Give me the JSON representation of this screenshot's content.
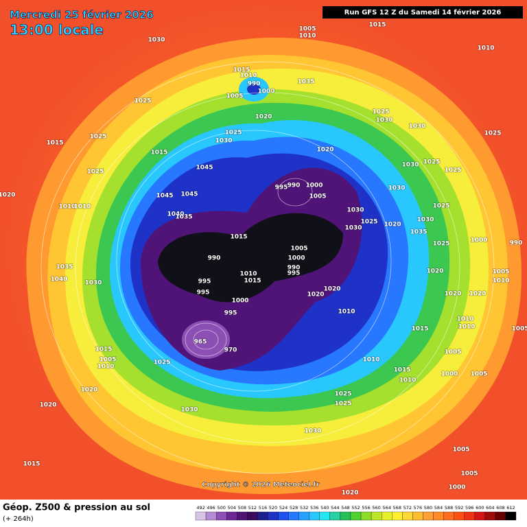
{
  "header": {
    "date": "Mercredi 25 février 2026",
    "time": "13:00 locale",
    "run": "Run GFS 12 Z du Samedi 14 février 2026"
  },
  "copyright": "Copyright © 2026 Meteociel.fr",
  "footer": {
    "title": "Géop. Z500 & pression au sol",
    "lead": "(+ 264h)"
  },
  "colorbar": {
    "values": [
      492,
      496,
      500,
      504,
      508,
      512,
      516,
      520,
      524,
      528,
      532,
      536,
      540,
      544,
      548,
      552,
      556,
      560,
      564,
      568,
      572,
      576,
      580,
      584,
      588,
      592,
      596,
      600,
      604,
      608,
      612
    ],
    "colors": [
      "#d9c4e6",
      "#b48cd2",
      "#8c50b4",
      "#6e2896",
      "#501478",
      "#3c0a5a",
      "#1e1e8c",
      "#1e32c8",
      "#1e50f0",
      "#2878ff",
      "#28a0ff",
      "#28c8ff",
      "#28e6f0",
      "#28d2a0",
      "#28be5a",
      "#50d232",
      "#8cdc28",
      "#bee628",
      "#e6f028",
      "#fff032",
      "#ffd732",
      "#ffbe32",
      "#ffa032",
      "#ff8c28",
      "#ff6e1e",
      "#ff5014",
      "#f03214",
      "#d21414",
      "#a00a0a",
      "#640000",
      "#000000"
    ]
  },
  "isobars": [
    1005,
    1010,
    1015,
    1030,
    1010,
    1015,
    1010,
    990,
    1000,
    1005,
    1035,
    1025,
    1020,
    1025,
    1030,
    1030,
    1025,
    1025,
    1025,
    1030,
    1015,
    1015,
    1020,
    1045,
    1025,
    995,
    990,
    1000,
    1005,
    1030,
    1025,
    1025,
    1030,
    1020,
    1045,
    1045,
    1030,
    1025,
    1020,
    1030,
    1025,
    1035,
    1025,
    1000,
    990,
    1030,
    1040,
    1035,
    1015,
    1005,
    990,
    1000,
    990,
    995,
    1035,
    1040,
    1030,
    995,
    1010,
    1015,
    995,
    1020,
    1020,
    1020,
    1005,
    1010,
    1000,
    995,
    1010,
    1020,
    1020,
    965,
    970,
    1015,
    1010,
    1010,
    1005,
    1015,
    1005,
    1010,
    1025,
    1010,
    1005,
    1015,
    1010,
    1000,
    1005,
    1020,
    1025,
    1025,
    1030,
    1020,
    1030,
    1005,
    1015,
    1005,
    1000,
    1020,
    1010,
    1010
  ]
}
